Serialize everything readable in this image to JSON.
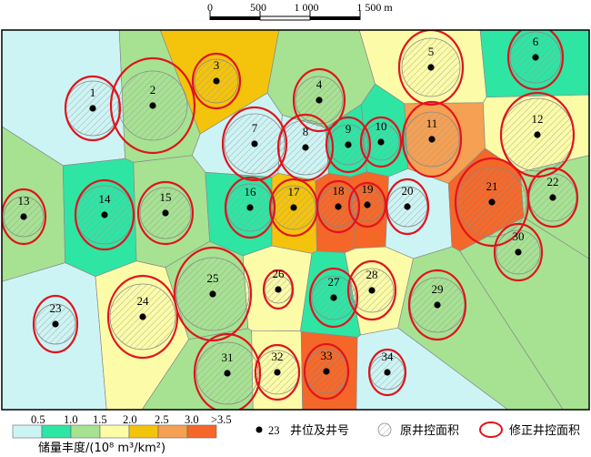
{
  "scale_bar": {
    "ticks": [
      "0",
      "500",
      "1 000",
      "1 500 m"
    ]
  },
  "palette": {
    "c05": "#cdf4f4",
    "c10": "#2ee5a4",
    "c15": "#a6e292",
    "c20": "#fcfca8",
    "c25": "#f4c40c",
    "c30": "#f5a052",
    "c35": "#f46728",
    "frame": "#000000",
    "modified_circle": "#e0141e",
    "original_hatch": "#9a9a9a"
  },
  "wells": [
    {
      "id": "1"
    },
    {
      "id": "2"
    },
    {
      "id": "3"
    },
    {
      "id": "4"
    },
    {
      "id": "5"
    },
    {
      "id": "6"
    },
    {
      "id": "7"
    },
    {
      "id": "8"
    },
    {
      "id": "9"
    },
    {
      "id": "10"
    },
    {
      "id": "11"
    },
    {
      "id": "12"
    },
    {
      "id": "13"
    },
    {
      "id": "14"
    },
    {
      "id": "15"
    },
    {
      "id": "16"
    },
    {
      "id": "17"
    },
    {
      "id": "18"
    },
    {
      "id": "19"
    },
    {
      "id": "20"
    },
    {
      "id": "21"
    },
    {
      "id": "22"
    },
    {
      "id": "23"
    },
    {
      "id": "24"
    },
    {
      "id": "25"
    },
    {
      "id": "26"
    },
    {
      "id": "27"
    },
    {
      "id": "28"
    },
    {
      "id": "29"
    },
    {
      "id": "30"
    },
    {
      "id": "31"
    },
    {
      "id": "32"
    },
    {
      "id": "33"
    },
    {
      "id": "34"
    }
  ],
  "legend": {
    "class_breaks": [
      "0.5",
      "1.0",
      "1.5",
      "2.0",
      "2.5",
      "3.0",
      ">3.5"
    ],
    "abundance_label": "储量丰度/(10⁸ m³/km²)",
    "well_sample_number": "23",
    "well_label": "井位及井号",
    "original_area_label": "原井控面积",
    "modified_area_label": "修正井控面积"
  }
}
